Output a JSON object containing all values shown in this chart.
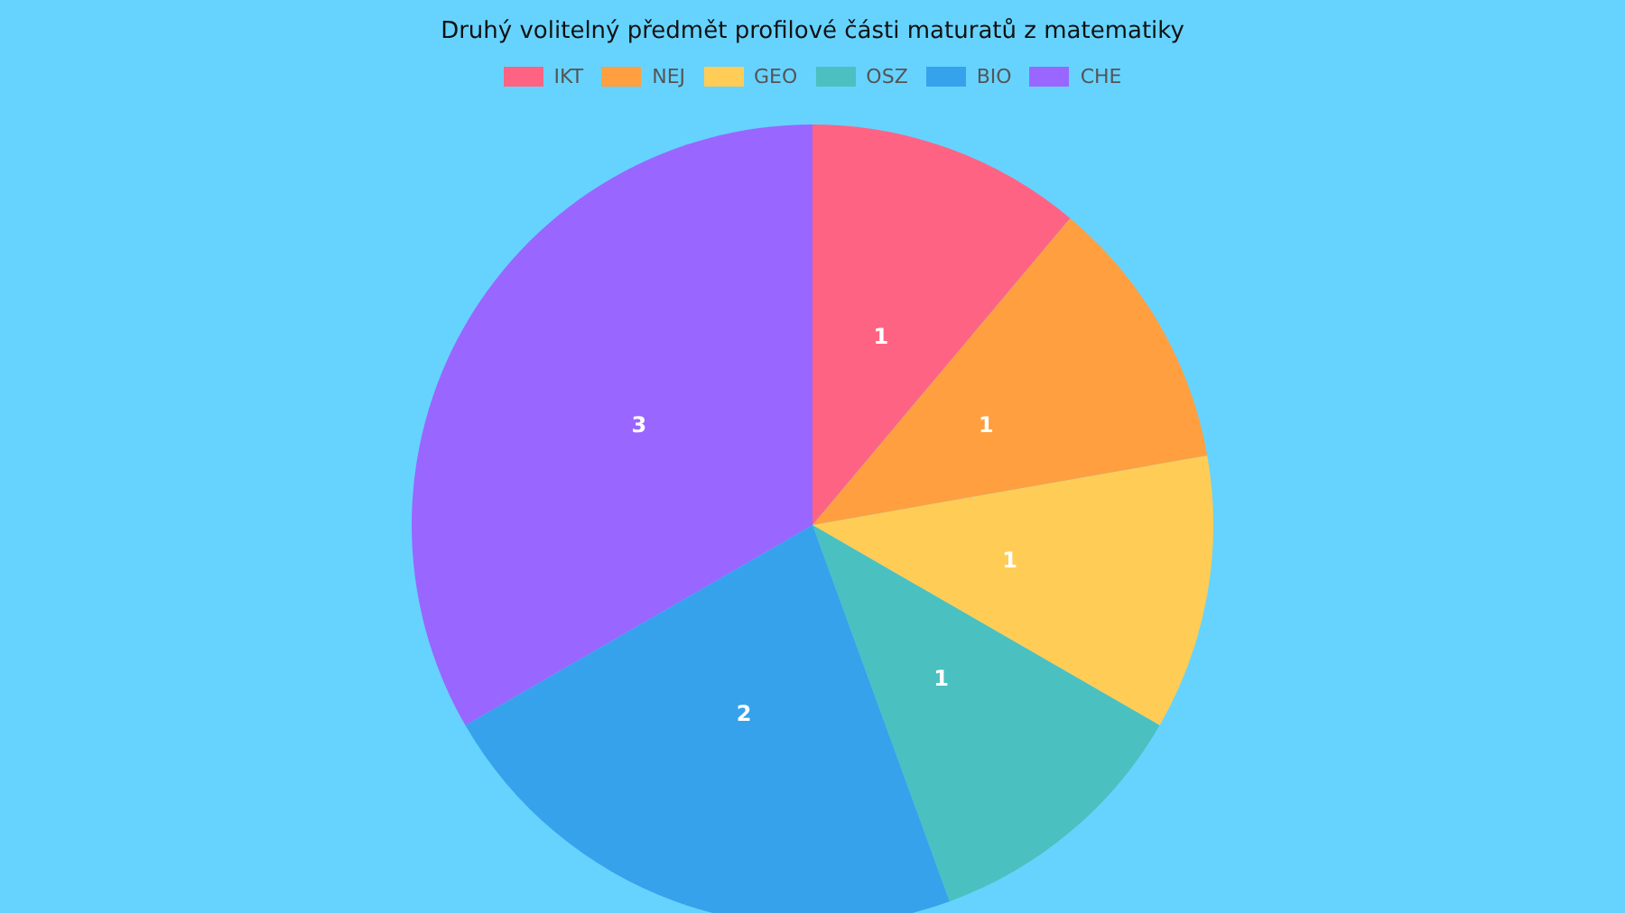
{
  "chart_data": {
    "type": "pie",
    "title": "Druhý volitelný předmět profilové části maturatů z matematiky",
    "categories": [
      "IKT",
      "NEJ",
      "GEO",
      "OSZ",
      "BIO",
      "CHE"
    ],
    "values": [
      1,
      1,
      1,
      1,
      2,
      3
    ],
    "colors": [
      "#ff6384",
      "#ff9f40",
      "#ffcd56",
      "#4bc0c0",
      "#36a2eb",
      "#9966ff"
    ],
    "legend": "top",
    "data_labels": true
  }
}
